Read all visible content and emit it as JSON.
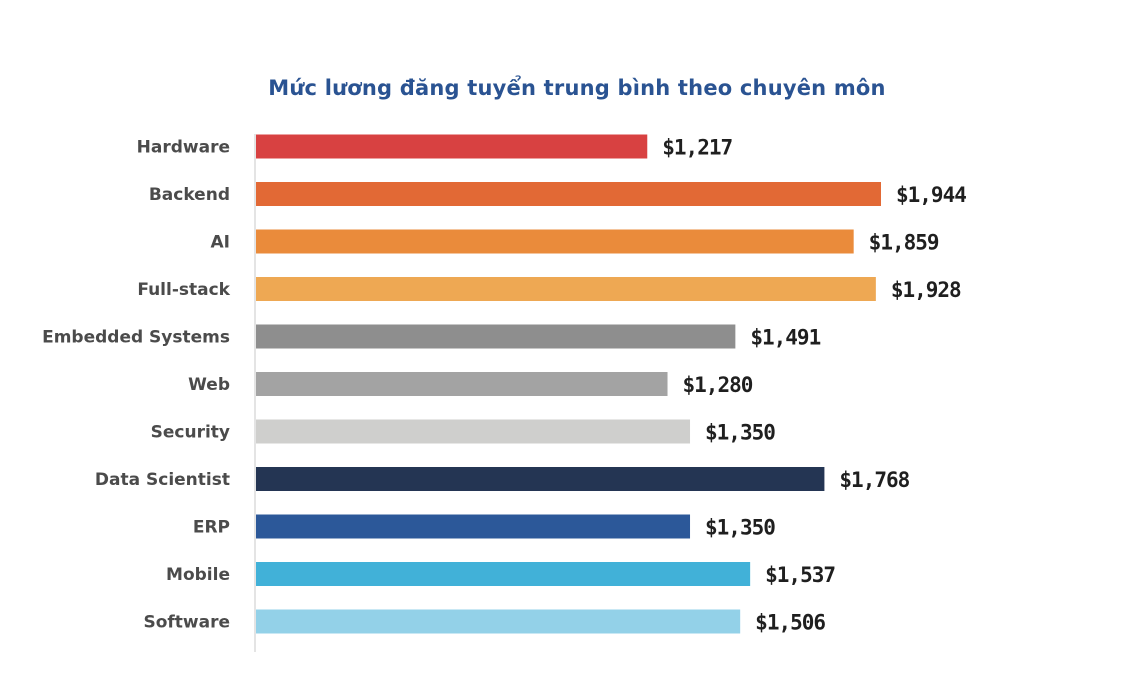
{
  "chart_data": {
    "type": "bar",
    "orientation": "horizontal",
    "title": "Mức lương đăng tuyển trung bình theo chuyên môn",
    "categories": [
      "Hardware",
      "Backend",
      "AI",
      "Full-stack",
      "Embedded Systems",
      "Web",
      "Security",
      "Data Scientist",
      "ERP",
      "Mobile",
      "Software"
    ],
    "values": [
      1217,
      1944,
      1859,
      1928,
      1491,
      1280,
      1350,
      1768,
      1350,
      1537,
      1506
    ],
    "value_labels": [
      "$1,217",
      "$1,944",
      "$1,859",
      "$1,928",
      "$1,491",
      "$1,280",
      "$1,350",
      "$1,768",
      "$1,350",
      "$1,537",
      "$1,506"
    ],
    "colors": [
      "#d84141",
      "#e26935",
      "#ea8b3b",
      "#eea853",
      "#8e8e8e",
      "#a3a3a3",
      "#cfcfcd",
      "#243553",
      "#2c5899",
      "#41b1d8",
      "#93d1e8"
    ],
    "xlim": [
      0,
      1944
    ],
    "grid": false,
    "legend": "none"
  }
}
